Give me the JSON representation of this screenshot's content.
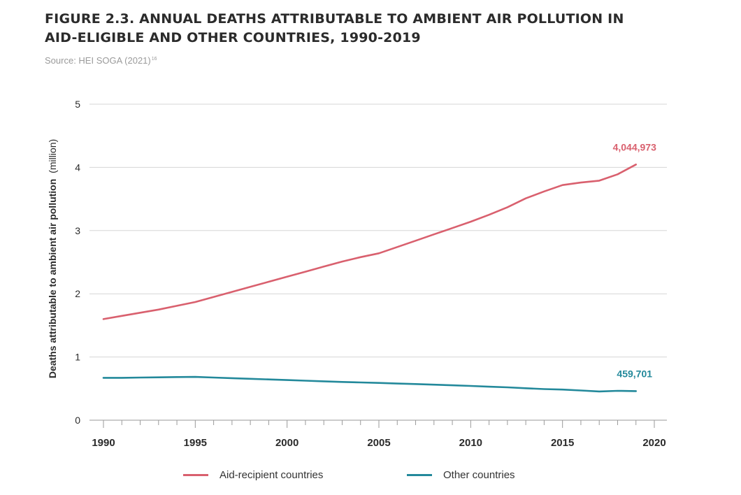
{
  "figure": {
    "title": "FIGURE 2.3.  ANNUAL DEATHS ATTRIBUTABLE TO AMBIENT AIR POLLUTION IN AID-ELIGIBLE AND OTHER COUNTRIES, 1990-2019",
    "source_label": "Source: HEI SOGA (2021)",
    "source_ref": "16"
  },
  "chart_data": {
    "type": "line",
    "title": "FIGURE 2.3.  ANNUAL DEATHS ATTRIBUTABLE TO AMBIENT AIR POLLUTION IN AID-ELIGIBLE AND OTHER COUNTRIES, 1990-2019",
    "xlabel": "",
    "ylabel": "Deaths attributable to ambient air pollution",
    "ylabel_unit": "(million)",
    "xlim": [
      1990,
      2020
    ],
    "ylim": [
      0,
      5
    ],
    "x_ticks": [
      1990,
      1995,
      2000,
      2005,
      2010,
      2015,
      2020
    ],
    "y_ticks": [
      0,
      1,
      2,
      3,
      4,
      5
    ],
    "grid": "horizontal",
    "legend_position": "bottom",
    "x": [
      1990,
      1991,
      1992,
      1993,
      1994,
      1995,
      1996,
      1997,
      1998,
      1999,
      2000,
      2001,
      2002,
      2003,
      2004,
      2005,
      2006,
      2007,
      2008,
      2009,
      2010,
      2011,
      2012,
      2013,
      2014,
      2015,
      2016,
      2017,
      2018,
      2019
    ],
    "series": [
      {
        "name": "Aid-recipient countries",
        "color": "#d9606e",
        "values": [
          1.6,
          1.65,
          1.7,
          1.75,
          1.81,
          1.87,
          1.95,
          2.03,
          2.11,
          2.19,
          2.27,
          2.35,
          2.43,
          2.51,
          2.58,
          2.64,
          2.74,
          2.84,
          2.94,
          3.04,
          3.14,
          3.25,
          3.37,
          3.51,
          3.62,
          3.72,
          3.76,
          3.79,
          3.89,
          4.045
        ],
        "end_label": "4,044,973"
      },
      {
        "name": "Other countries",
        "color": "#23899b",
        "values": [
          0.67,
          0.67,
          0.675,
          0.678,
          0.682,
          0.685,
          0.675,
          0.665,
          0.655,
          0.645,
          0.635,
          0.625,
          0.615,
          0.605,
          0.597,
          0.59,
          0.58,
          0.572,
          0.562,
          0.552,
          0.542,
          0.53,
          0.52,
          0.505,
          0.492,
          0.485,
          0.47,
          0.455,
          0.465,
          0.46
        ],
        "end_label": "459,701"
      }
    ]
  }
}
